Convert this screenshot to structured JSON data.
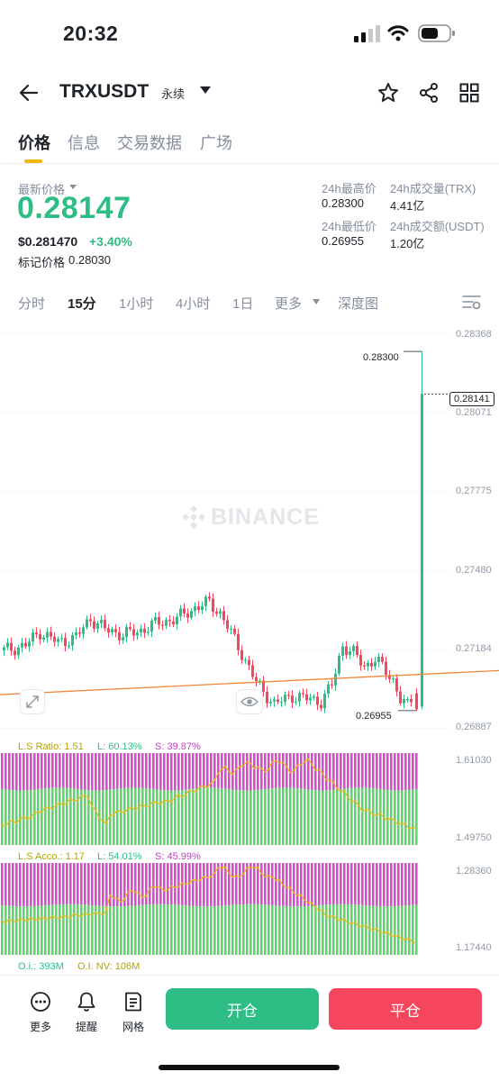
{
  "status": {
    "time": "20:32"
  },
  "header": {
    "symbol": "TRXUSDT",
    "badge": "永续"
  },
  "tabs": [
    {
      "label": "价格",
      "active": true
    },
    {
      "label": "信息",
      "active": false
    },
    {
      "label": "交易数据",
      "active": false
    },
    {
      "label": "广场",
      "active": false
    }
  ],
  "ticker": {
    "last_price_label": "最新价格",
    "last_price": "0.28147",
    "usd_price": "$0.281470",
    "change_pct": "+3.40%",
    "mark_label": "标记价格",
    "mark_price": "0.28030",
    "high_label": "24h最高价",
    "high": "0.28300",
    "low_label": "24h最低价",
    "low": "0.26955",
    "vol_label": "24h成交量(TRX)",
    "vol": "4.41亿",
    "amt_label": "24h成交额(USDT)",
    "amt": "1.20亿"
  },
  "intervals": [
    {
      "label": "分时",
      "active": false
    },
    {
      "label": "15分",
      "active": true
    },
    {
      "label": "1小时",
      "active": false
    },
    {
      "label": "4小时",
      "active": false
    },
    {
      "label": "1日",
      "active": false
    },
    {
      "label": "更多",
      "active": false
    },
    {
      "label": "深度图",
      "active": false
    }
  ],
  "chart_data": {
    "type": "candlestick",
    "watermark": "BINANCE",
    "y_ticks": [
      "0.28368",
      "0.28071",
      "0.27775",
      "0.27480",
      "0.27184",
      "0.26887"
    ],
    "ylim": [
      0.26887,
      0.28368
    ],
    "high_marker": "0.28300",
    "low_marker": "0.26955",
    "current_price": "0.28141",
    "colors": {
      "up": "#2ebd85",
      "down": "#f6465d",
      "trend": "#f0873a"
    },
    "indicators": [
      {
        "label": "L.S Ratio: 1.51",
        "long": "L: 60.13%",
        "short": "S: 39.87%",
        "y_ticks": [
          "1.61030",
          "1.49750"
        ]
      },
      {
        "label": "L.S Acco.: 1.17",
        "long": "L: 54.01%",
        "short": "S: 45.99%",
        "y_ticks": [
          "1.28360",
          "1.17440"
        ]
      }
    ],
    "oi": {
      "label": "O.i.: 393M",
      "nv": "O.I. NV: 106M"
    }
  },
  "bottom": {
    "more": "更多",
    "alert": "提醒",
    "grid": "网格",
    "open": "开仓",
    "close": "平仓"
  }
}
